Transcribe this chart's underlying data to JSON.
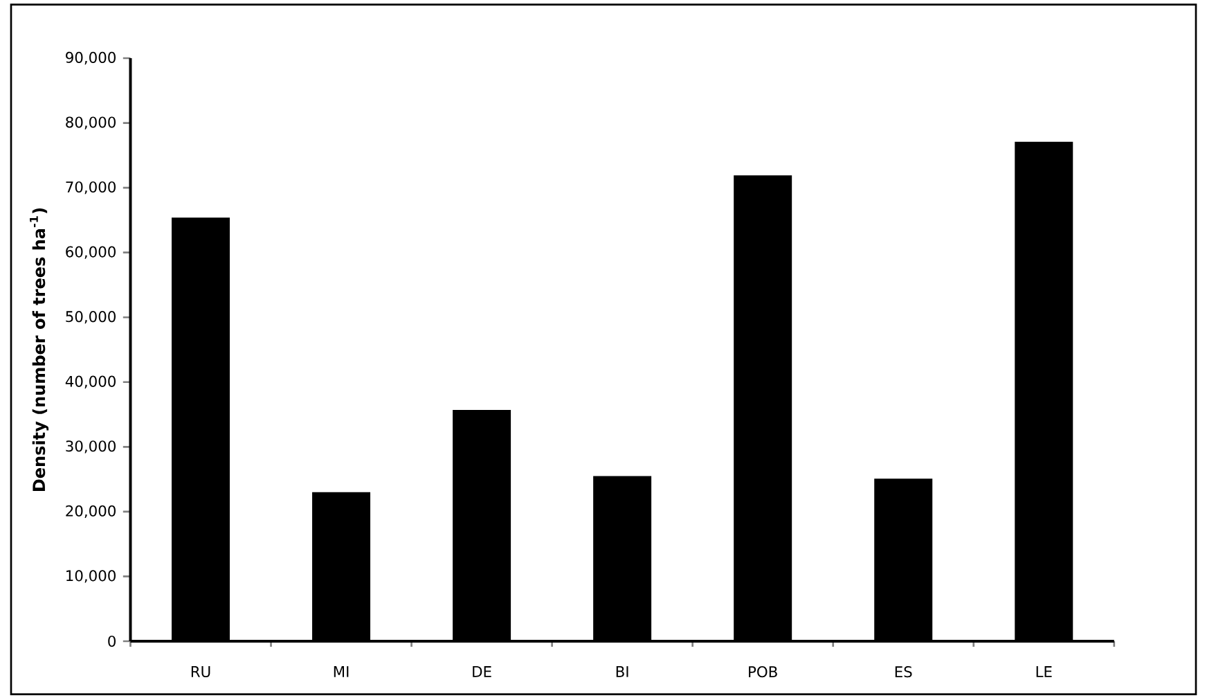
{
  "chart_data": {
    "type": "bar",
    "ylabel": "Density (number of trees ha$^{-1}$)",
    "categories": [
      "RU",
      "MI",
      "DE",
      "BI",
      "POB",
      "ES",
      "LE"
    ],
    "values": [
      65400,
      23000,
      35700,
      25500,
      71900,
      25100,
      77100
    ],
    "color": "#000000",
    "ylim": [
      0,
      90000
    ],
    "yticks": [
      {
        "value": 0,
        "label": "0"
      },
      {
        "value": 10000,
        "label": "10,000"
      },
      {
        "value": 20000,
        "label": "20,000"
      },
      {
        "value": 30000,
        "label": "30,000"
      },
      {
        "value": 40000,
        "label": "40,000"
      },
      {
        "value": 50000,
        "label": "50,000"
      },
      {
        "value": 60000,
        "label": "60,000"
      },
      {
        "value": 70000,
        "label": "70,000"
      },
      {
        "value": 80000,
        "label": "80,000"
      },
      {
        "value": 90000,
        "label": "90,000"
      }
    ]
  }
}
